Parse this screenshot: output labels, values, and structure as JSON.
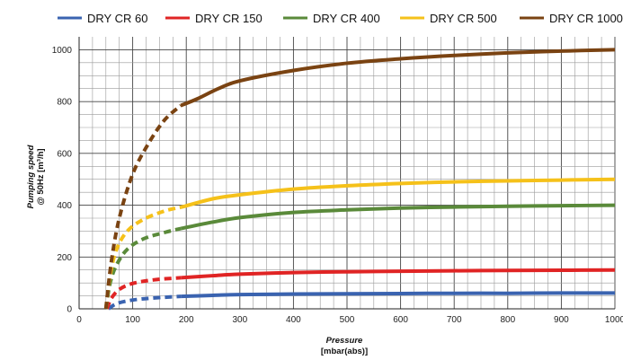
{
  "chart_data": {
    "type": "line",
    "xlabel_line1": "Pressure",
    "xlabel_line2": "[mbar(abs)]",
    "ylabel_line1": "Pumping speed",
    "ylabel_line2": "@ 50Hz [m³/h]",
    "xlim": [
      0,
      1000
    ],
    "ylim": [
      0,
      1050
    ],
    "x_ticks": [
      0,
      100,
      200,
      300,
      400,
      500,
      600,
      700,
      800,
      900,
      1000
    ],
    "y_ticks": [
      0,
      200,
      400,
      600,
      800,
      1000
    ],
    "grid": true,
    "legend_position": "top",
    "series": [
      {
        "name": "DRY CR 60",
        "color": "#3a63b0",
        "dashed_points": [
          [
            55,
            0
          ],
          [
            70,
            20
          ],
          [
            100,
            34
          ],
          [
            140,
            42
          ],
          [
            190,
            48
          ]
        ],
        "solid_points": [
          [
            190,
            48
          ],
          [
            250,
            52
          ],
          [
            300,
            55
          ],
          [
            400,
            57
          ],
          [
            500,
            58
          ],
          [
            600,
            59
          ],
          [
            700,
            60
          ],
          [
            800,
            60
          ],
          [
            900,
            61
          ],
          [
            1000,
            61
          ]
        ]
      },
      {
        "name": "DRY CR 150",
        "color": "#e02424",
        "dashed_points": [
          [
            52,
            0
          ],
          [
            60,
            40
          ],
          [
            75,
            75
          ],
          [
            100,
            98
          ],
          [
            140,
            112
          ],
          [
            190,
            120
          ]
        ],
        "solid_points": [
          [
            190,
            120
          ],
          [
            250,
            128
          ],
          [
            300,
            134
          ],
          [
            400,
            140
          ],
          [
            500,
            143
          ],
          [
            600,
            145
          ],
          [
            700,
            147
          ],
          [
            800,
            148
          ],
          [
            900,
            149
          ],
          [
            1000,
            150
          ]
        ]
      },
      {
        "name": "DRY CR 400",
        "color": "#5a8a3a",
        "dashed_points": [
          [
            50,
            0
          ],
          [
            58,
            100
          ],
          [
            70,
            170
          ],
          [
            90,
            230
          ],
          [
            120,
            270
          ],
          [
            160,
            295
          ],
          [
            190,
            310
          ]
        ],
        "solid_points": [
          [
            190,
            310
          ],
          [
            250,
            335
          ],
          [
            300,
            352
          ],
          [
            400,
            372
          ],
          [
            500,
            382
          ],
          [
            600,
            389
          ],
          [
            700,
            393
          ],
          [
            800,
            396
          ],
          [
            900,
            398
          ],
          [
            1000,
            400
          ]
        ]
      },
      {
        "name": "DRY CR 500",
        "color": "#f5c11a",
        "dashed_points": [
          [
            50,
            0
          ],
          [
            58,
            130
          ],
          [
            70,
            230
          ],
          [
            90,
            300
          ],
          [
            120,
            345
          ],
          [
            160,
            378
          ],
          [
            190,
            392
          ]
        ],
        "solid_points": [
          [
            190,
            392
          ],
          [
            250,
            425
          ],
          [
            300,
            440
          ],
          [
            400,
            462
          ],
          [
            500,
            475
          ],
          [
            600,
            484
          ],
          [
            700,
            490
          ],
          [
            800,
            494
          ],
          [
            900,
            497
          ],
          [
            1000,
            500
          ]
        ]
      },
      {
        "name": "DRY CR 1000",
        "color": "#7a4312",
        "dashed_points": [
          [
            50,
            0
          ],
          [
            60,
            180
          ],
          [
            75,
            350
          ],
          [
            100,
            520
          ],
          [
            130,
            640
          ],
          [
            160,
            730
          ],
          [
            190,
            785
          ]
        ],
        "solid_points": [
          [
            190,
            785
          ],
          [
            220,
            810
          ],
          [
            260,
            850
          ],
          [
            300,
            880
          ],
          [
            400,
            920
          ],
          [
            500,
            948
          ],
          [
            600,
            965
          ],
          [
            700,
            978
          ],
          [
            800,
            988
          ],
          [
            900,
            995
          ],
          [
            1000,
            1000
          ]
        ]
      }
    ]
  }
}
